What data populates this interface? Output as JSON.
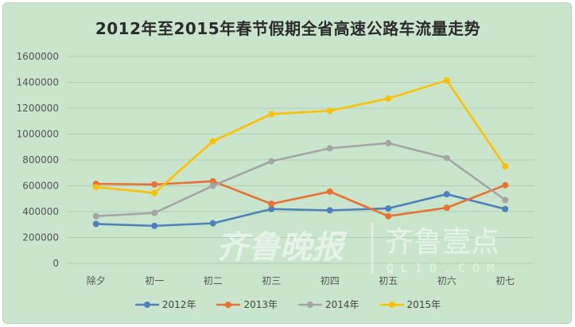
{
  "chart_data": {
    "type": "line",
    "title": "2012年至2015年春节假期全省高速公路车流量走势",
    "categories": [
      "除夕",
      "初一",
      "初二",
      "初三",
      "初四",
      "初五",
      "初六",
      "初七"
    ],
    "ylim": [
      0,
      1600000
    ],
    "yticks": [
      "0",
      "200000",
      "400000",
      "600000",
      "800000",
      "1000000",
      "1200000",
      "1400000",
      "1600000"
    ],
    "grid": true,
    "legend_position": "bottom",
    "series": [
      {
        "name": "2012年",
        "color": "#4f81bd",
        "values": [
          305000,
          290000,
          310000,
          420000,
          410000,
          425000,
          535000,
          420000
        ]
      },
      {
        "name": "2013年",
        "color": "#e97132",
        "values": [
          615000,
          610000,
          635000,
          460000,
          555000,
          365000,
          430000,
          605000
        ]
      },
      {
        "name": "2014年",
        "color": "#a5a5a5",
        "values": [
          365000,
          390000,
          600000,
          790000,
          890000,
          930000,
          815000,
          490000
        ]
      },
      {
        "name": "2015年",
        "color": "#ffc000",
        "values": [
          590000,
          545000,
          945000,
          1155000,
          1180000,
          1275000,
          1415000,
          750000
        ]
      }
    ]
  },
  "watermark": {
    "brand_a": "齐鲁晚报",
    "brand_b": "齐鲁壹点",
    "domain": "QLID.COM"
  }
}
